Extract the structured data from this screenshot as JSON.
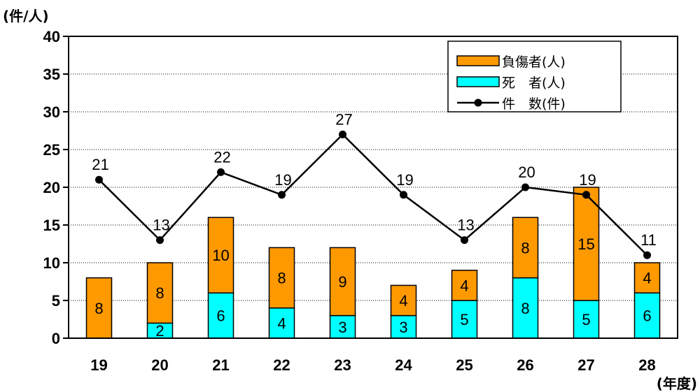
{
  "chart_data": {
    "type": "bar",
    "stacked": true,
    "y_unit_label": "(件/人)",
    "x_unit_label": "(年度)",
    "categories": [
      "19",
      "20",
      "21",
      "22",
      "23",
      "24",
      "25",
      "26",
      "27",
      "28"
    ],
    "ylim": [
      0,
      40
    ],
    "yticks": [
      "0",
      "5",
      "10",
      "15",
      "20",
      "25",
      "30",
      "35",
      "40"
    ],
    "grid": true,
    "legend_position": "top-right",
    "series": [
      {
        "name": "負傷者(人)",
        "kind": "bar",
        "color": "#FF9900",
        "values": [
          8,
          8,
          10,
          8,
          9,
          4,
          4,
          8,
          15,
          4
        ]
      },
      {
        "name": "死　者(人)",
        "kind": "bar",
        "color": "#00FFFF",
        "values": [
          0,
          2,
          6,
          4,
          3,
          3,
          5,
          8,
          5,
          6
        ]
      },
      {
        "name": "件　数(件)",
        "kind": "line",
        "color": "#000000",
        "values": [
          21,
          13,
          22,
          19,
          27,
          19,
          13,
          20,
          19,
          11
        ]
      }
    ]
  }
}
